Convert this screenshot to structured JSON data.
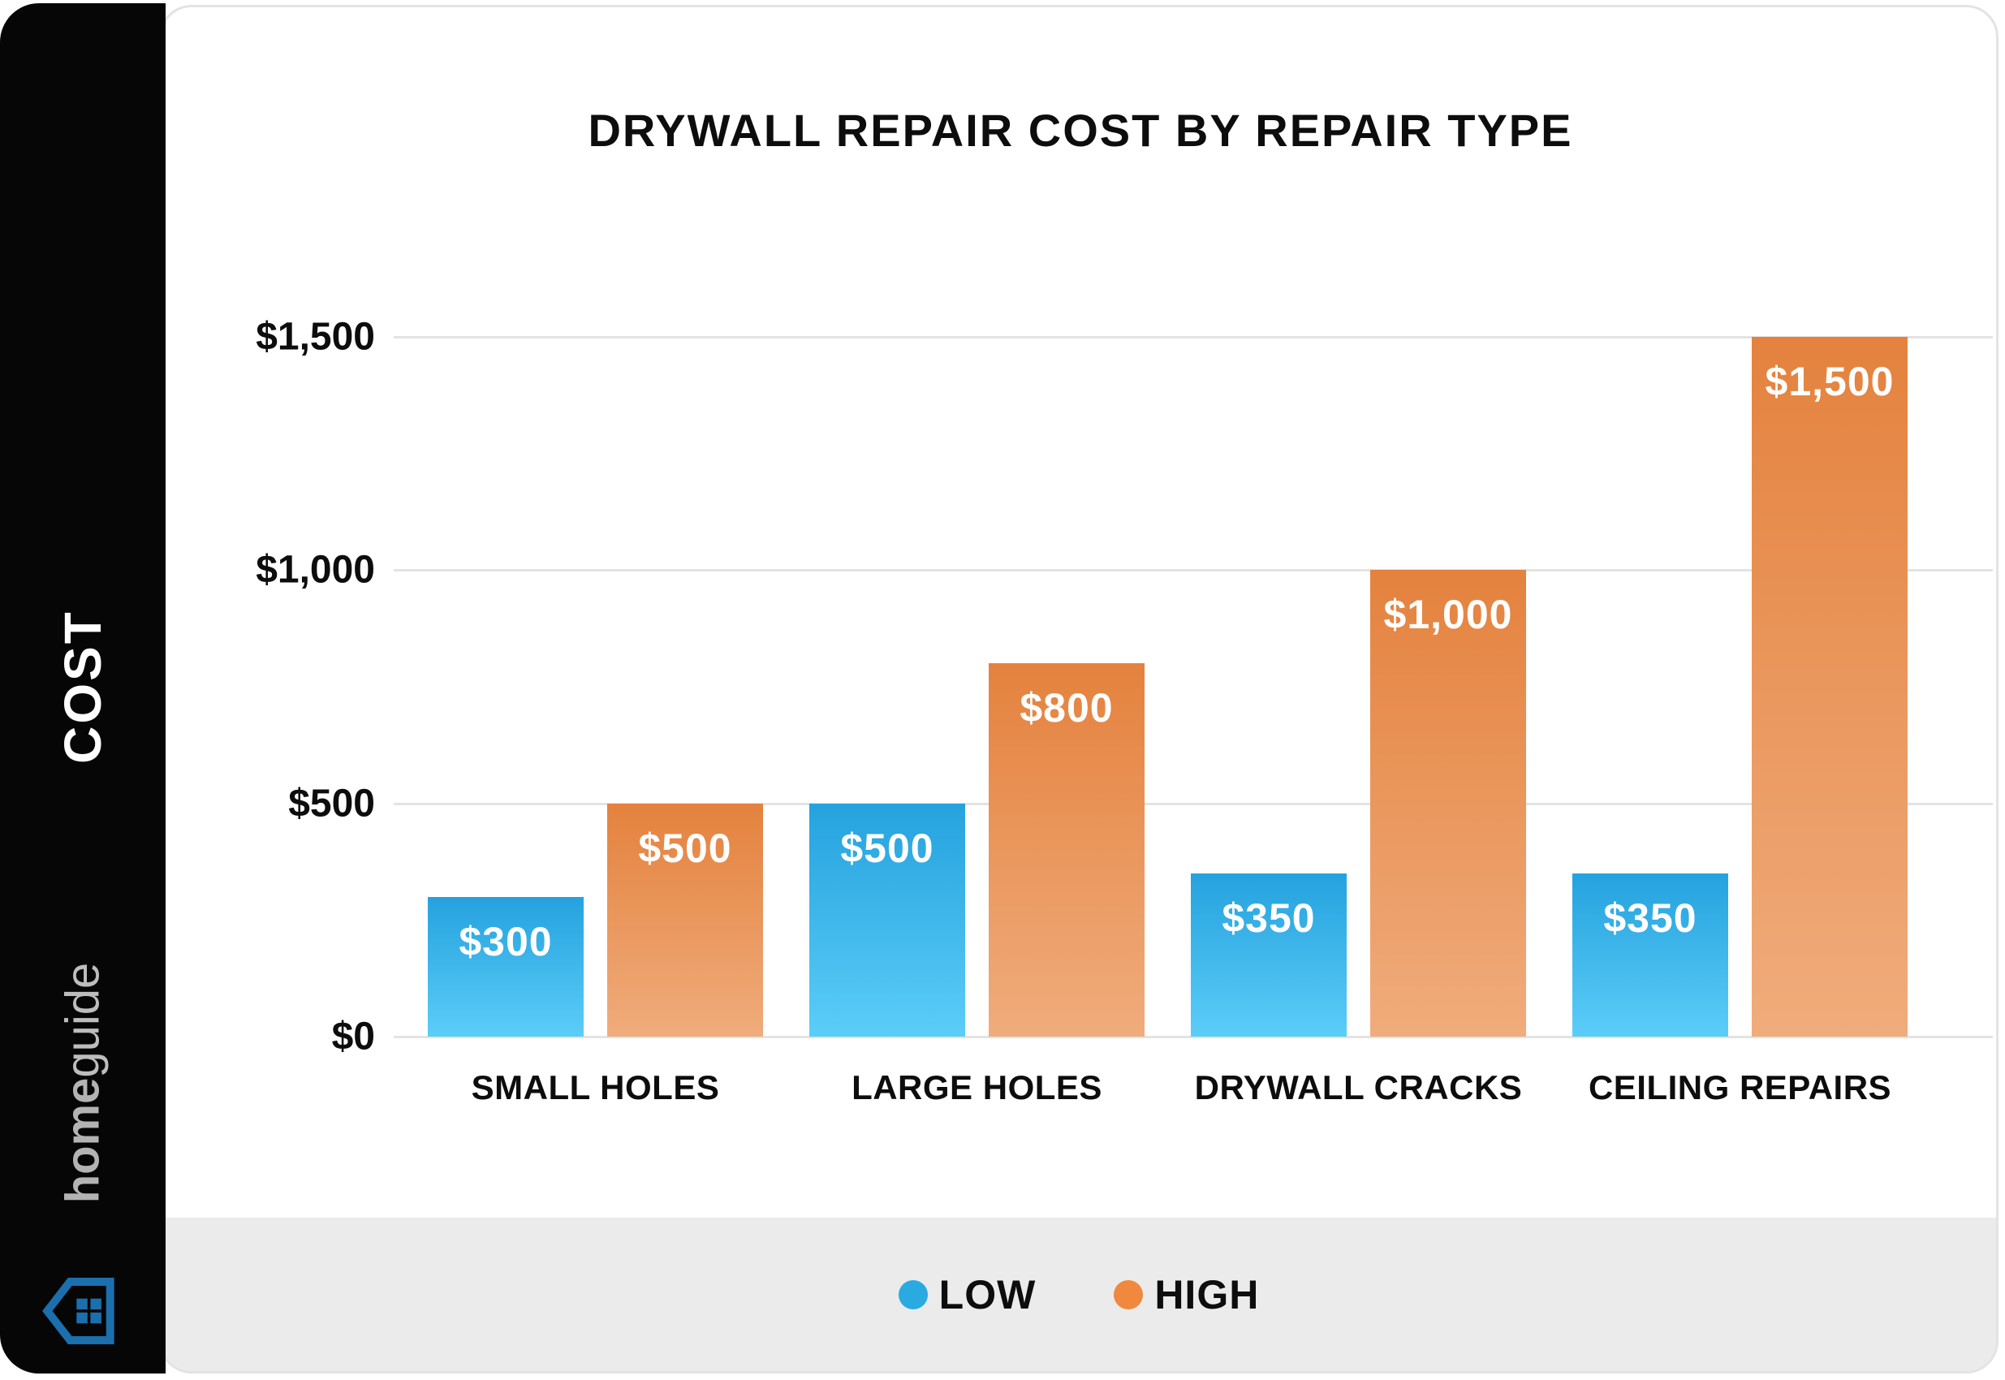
{
  "sidebar": {
    "axis_label": "COST",
    "brand": {
      "bold": "home",
      "light": "guide"
    }
  },
  "chart_data": {
    "type": "bar",
    "title": "DRYWALL REPAIR COST BY REPAIR TYPE",
    "categories": [
      "SMALL HOLES",
      "LARGE HOLES",
      "DRYWALL CRACKS",
      "CEILING REPAIRS"
    ],
    "series": [
      {
        "name": "LOW",
        "color": "#29ABE2",
        "gradient_top": "#25A2DE",
        "gradient_bottom": "#5BCDF8",
        "values": [
          300,
          500,
          350,
          350
        ],
        "value_labels": [
          "$300",
          "$500",
          "$350",
          "$350"
        ]
      },
      {
        "name": "HIGH",
        "color": "#F0883E",
        "gradient_top": "#E4823E",
        "gradient_bottom": "#F0AC7C",
        "values": [
          500,
          800,
          1000,
          1500
        ],
        "value_labels": [
          "$500",
          "$800",
          "$1,000",
          "$1,500"
        ]
      }
    ],
    "ylabel": "COST",
    "ylim": [
      0,
      1500
    ],
    "yticks": [
      {
        "value": 0,
        "label": "$0"
      },
      {
        "value": 500,
        "label": "$500"
      },
      {
        "value": 1000,
        "label": "$1,000"
      },
      {
        "value": 1500,
        "label": "$1,500"
      }
    ],
    "grid": true,
    "legend_position": "bottom"
  },
  "legend": {
    "items": [
      {
        "label": "LOW",
        "color": "#29ABE2"
      },
      {
        "label": "HIGH",
        "color": "#F0883E"
      }
    ]
  },
  "colors": {
    "card_background": "#ffffff",
    "card_border": "#e3e3e3",
    "legend_strip": "#ebebeb",
    "sidebar_background": "#060606",
    "gridline": "#e3e3e3",
    "text": "#0d0d0d",
    "brand_text": "#b3b3b3",
    "brand_icon": "#1b6fad"
  }
}
